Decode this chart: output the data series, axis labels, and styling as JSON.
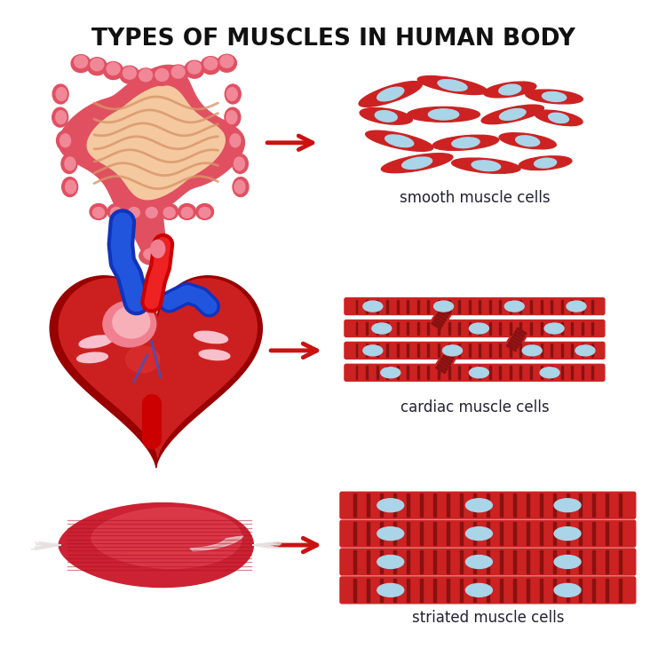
{
  "title": "TYPES OF MUSCLES IN HUMAN BODY",
  "title_fontsize": 19,
  "title_fontweight": "bold",
  "background_color": "#ffffff",
  "arrow_color": "#cc1111",
  "cell_body_color": "#cc2222",
  "cell_nucleus_color": "#aad4e8",
  "label_color": "#222233",
  "label_fontsize": 12,
  "labels": [
    "smooth muscle cells",
    "cardiac muscle cells",
    "striated muscle cells"
  ],
  "intestine_outer": "#e05060",
  "intestine_bumps": "#f08898",
  "intestine_inner": "#f5c9a0",
  "intestine_coil": "#d9956a",
  "heart_red": "#cc2020",
  "heart_dark": "#990000",
  "heart_pink": "#f08898",
  "heart_blue": "#1133bb",
  "muscle_red": "#cc2233",
  "muscle_light": "#e86070",
  "stripe_dark": "#881111"
}
